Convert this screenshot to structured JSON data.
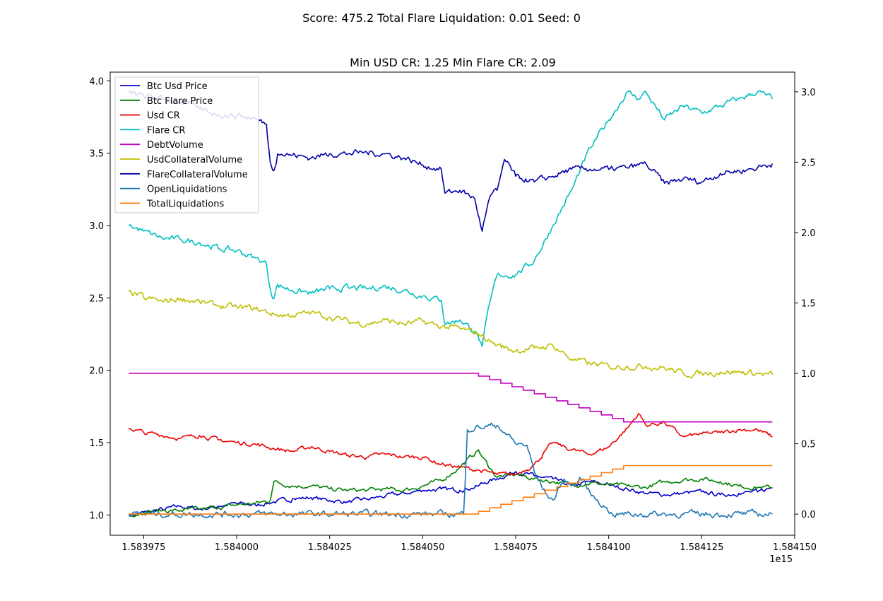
{
  "chart_data": {
    "type": "line",
    "suptitle": "Score: 475.2 Total Flare Liquidation: 0.01 Seed: 0",
    "title": "Min USD CR: 1.25 Min Flare CR: 2.09",
    "x_offset_label": "1e15",
    "xlim": [
      1.583966,
      1.58415
    ],
    "xticks": [
      1.583975,
      1.584,
      1.584025,
      1.58405,
      1.584075,
      1.5841,
      1.584125,
      1.58415
    ],
    "xtick_labels": [
      "1.583975",
      "1.584000",
      "1.584025",
      "1.584050",
      "1.584075",
      "1.584100",
      "1.584125",
      "1.584150"
    ],
    "y_left": {
      "lim": [
        0.86,
        4.06
      ],
      "ticks": [
        1.0,
        1.5,
        2.0,
        2.5,
        3.0,
        3.5,
        4.0
      ],
      "tick_labels": [
        "1.0",
        "1.5",
        "2.0",
        "2.5",
        "3.0",
        "3.5",
        "4.0"
      ]
    },
    "y_right": {
      "lim": [
        -0.15,
        3.14
      ],
      "ticks": [
        0.0,
        0.5,
        1.0,
        1.5,
        2.0,
        2.5,
        3.0
      ],
      "tick_labels": [
        "0.0",
        "0.5",
        "1.0",
        "1.5",
        "2.0",
        "2.5",
        "3.0"
      ]
    },
    "legend_position": "top-left",
    "series": [
      {
        "name": "Btc Usd Price",
        "color": "#0000cc",
        "axis": "left",
        "x": [
          1.583971,
          1.583976,
          1.58398,
          1.583985,
          1.58399,
          1.583995,
          1.584,
          1.584005,
          1.58401,
          1.584015,
          1.58402,
          1.584025,
          1.58403,
          1.584035,
          1.58404,
          1.584045,
          1.58405,
          1.584055,
          1.58406,
          1.584065,
          1.584066,
          1.58407,
          1.584075,
          1.58408,
          1.584085,
          1.58409,
          1.584095,
          1.5841,
          1.584105,
          1.58411,
          1.584115,
          1.58412,
          1.584125,
          1.58413,
          1.584135,
          1.58414,
          1.584144
        ],
        "y": [
          1.0,
          1.02,
          1.04,
          1.06,
          1.04,
          1.06,
          1.08,
          1.07,
          1.09,
          1.11,
          1.12,
          1.1,
          1.09,
          1.11,
          1.13,
          1.15,
          1.17,
          1.18,
          1.17,
          1.2,
          1.22,
          1.25,
          1.3,
          1.27,
          1.25,
          1.2,
          1.23,
          1.21,
          1.18,
          1.15,
          1.14,
          1.15,
          1.16,
          1.14,
          1.15,
          1.16,
          1.19
        ]
      },
      {
        "name": "Btc Flare Price",
        "color": "#008000",
        "axis": "left",
        "x": [
          1.583971,
          1.583975,
          1.58398,
          1.583985,
          1.58399,
          1.583995,
          1.584,
          1.584005,
          1.584009,
          1.58401,
          1.584015,
          1.58402,
          1.584025,
          1.58403,
          1.584035,
          1.58404,
          1.584045,
          1.58405,
          1.584055,
          1.58406,
          1.584065,
          1.584066,
          1.58407,
          1.584075,
          1.58408,
          1.584085,
          1.58409,
          1.584095,
          1.5841,
          1.584105,
          1.58411,
          1.584115,
          1.58412,
          1.584125,
          1.58413,
          1.584135,
          1.58414,
          1.584144
        ],
        "y": [
          1.0,
          1.02,
          1.03,
          1.03,
          1.04,
          1.05,
          1.07,
          1.08,
          1.1,
          1.23,
          1.2,
          1.2,
          1.18,
          1.17,
          1.17,
          1.18,
          1.17,
          1.2,
          1.24,
          1.33,
          1.45,
          1.4,
          1.26,
          1.28,
          1.25,
          1.23,
          1.21,
          1.22,
          1.21,
          1.2,
          1.19,
          1.23,
          1.24,
          1.25,
          1.23,
          1.2,
          1.19,
          1.19
        ]
      },
      {
        "name": "Usd CR",
        "color": "#ee0000",
        "axis": "left",
        "x": [
          1.583971,
          1.583975,
          1.58398,
          1.583985,
          1.58399,
          1.583995,
          1.584,
          1.584005,
          1.58401,
          1.584015,
          1.58402,
          1.584025,
          1.58403,
          1.584035,
          1.58404,
          1.584045,
          1.58405,
          1.584055,
          1.58406,
          1.584065,
          1.58407,
          1.584075,
          1.58408,
          1.584085,
          1.58409,
          1.584095,
          1.5841,
          1.584105,
          1.584108,
          1.58411,
          1.584115,
          1.58412,
          1.584125,
          1.58413,
          1.584135,
          1.58414,
          1.584144
        ],
        "y": [
          1.6,
          1.57,
          1.55,
          1.53,
          1.55,
          1.52,
          1.5,
          1.49,
          1.46,
          1.44,
          1.47,
          1.44,
          1.41,
          1.4,
          1.42,
          1.4,
          1.4,
          1.35,
          1.33,
          1.31,
          1.28,
          1.28,
          1.35,
          1.5,
          1.45,
          1.42,
          1.47,
          1.6,
          1.7,
          1.62,
          1.64,
          1.54,
          1.56,
          1.57,
          1.59,
          1.59,
          1.54
        ]
      },
      {
        "name": "Flare CR",
        "color": "#00bfbf",
        "axis": "right",
        "x": [
          1.583971,
          1.583975,
          1.58398,
          1.583985,
          1.58399,
          1.583995,
          1.584,
          1.584005,
          1.584008,
          1.584009,
          1.58401,
          1.584011,
          1.584015,
          1.58402,
          1.584025,
          1.58403,
          1.584035,
          1.58404,
          1.584045,
          1.58405,
          1.584055,
          1.584056,
          1.58406,
          1.584064,
          1.584066,
          1.584068,
          1.58407,
          1.584075,
          1.58408,
          1.584085,
          1.58409,
          1.584095,
          1.5841,
          1.584105,
          1.584108,
          1.58411,
          1.584115,
          1.58412,
          1.584125,
          1.58413,
          1.584135,
          1.58414,
          1.584144
        ],
        "y": [
          2.05,
          2.01,
          1.96,
          1.95,
          1.93,
          1.89,
          1.87,
          1.82,
          1.78,
          1.6,
          1.53,
          1.63,
          1.59,
          1.57,
          1.6,
          1.61,
          1.6,
          1.62,
          1.59,
          1.55,
          1.52,
          1.35,
          1.38,
          1.3,
          1.19,
          1.5,
          1.7,
          1.7,
          1.8,
          2.05,
          2.3,
          2.6,
          2.8,
          3.0,
          2.95,
          3.0,
          2.8,
          2.9,
          2.85,
          2.9,
          2.95,
          3.0,
          2.95
        ]
      },
      {
        "name": "DebtVolume",
        "color": "#bf00bf",
        "axis": "right",
        "x": [
          1.583971,
          1.584062,
          1.584065,
          1.584068,
          1.584071,
          1.584074,
          1.584077,
          1.58408,
          1.584083,
          1.584086,
          1.584089,
          1.584092,
          1.584095,
          1.584098,
          1.584101,
          1.584104,
          1.584144
        ],
        "y": [
          1.0,
          1.0,
          0.98,
          0.955,
          0.93,
          0.905,
          0.88,
          0.855,
          0.83,
          0.805,
          0.78,
          0.755,
          0.73,
          0.705,
          0.68,
          0.655,
          0.655
        ]
      },
      {
        "name": "UsdCollateralVolume",
        "color": "#bfbf00",
        "axis": "right",
        "x": [
          1.583971,
          1.583975,
          1.58398,
          1.583985,
          1.58399,
          1.583995,
          1.584,
          1.584005,
          1.58401,
          1.584015,
          1.58402,
          1.584025,
          1.58403,
          1.584035,
          1.58404,
          1.584045,
          1.58405,
          1.584055,
          1.58406,
          1.584065,
          1.58407,
          1.584075,
          1.58408,
          1.584085,
          1.58409,
          1.584095,
          1.5841,
          1.584105,
          1.58411,
          1.584115,
          1.58412,
          1.584125,
          1.58413,
          1.584135,
          1.58414,
          1.584144
        ],
        "y": [
          1.58,
          1.54,
          1.51,
          1.53,
          1.51,
          1.48,
          1.47,
          1.46,
          1.42,
          1.41,
          1.43,
          1.4,
          1.37,
          1.35,
          1.38,
          1.35,
          1.37,
          1.33,
          1.32,
          1.28,
          1.2,
          1.16,
          1.18,
          1.2,
          1.1,
          1.07,
          1.05,
          1.05,
          1.05,
          1.04,
          1.0,
          1.0,
          1.01,
          1.01,
          1.0,
          0.99
        ]
      },
      {
        "name": "FlareCollateralVolume",
        "color": "#0000aa",
        "axis": "right",
        "x": [
          1.583971,
          1.583975,
          1.58398,
          1.583985,
          1.58399,
          1.583995,
          1.584,
          1.584005,
          1.584008,
          1.584009,
          1.58401,
          1.584011,
          1.584015,
          1.58402,
          1.584025,
          1.58403,
          1.584035,
          1.58404,
          1.584045,
          1.58405,
          1.584055,
          1.584056,
          1.58406,
          1.584064,
          1.584066,
          1.584068,
          1.58407,
          1.584072,
          1.584075,
          1.58408,
          1.584085,
          1.58409,
          1.584095,
          1.5841,
          1.584105,
          1.58411,
          1.584115,
          1.58412,
          1.584125,
          1.58413,
          1.584135,
          1.58414,
          1.584144
        ],
        "y": [
          3.0,
          2.97,
          2.95,
          2.93,
          2.88,
          2.84,
          2.83,
          2.81,
          2.77,
          2.5,
          2.44,
          2.56,
          2.55,
          2.53,
          2.56,
          2.56,
          2.57,
          2.56,
          2.53,
          2.48,
          2.45,
          2.28,
          2.3,
          2.24,
          2.01,
          2.25,
          2.3,
          2.52,
          2.4,
          2.36,
          2.4,
          2.45,
          2.45,
          2.45,
          2.46,
          2.49,
          2.35,
          2.38,
          2.36,
          2.42,
          2.44,
          2.46,
          2.49
        ]
      },
      {
        "name": "OpenLiquidations",
        "color": "#1f77b4",
        "axis": "right",
        "x": [
          1.583971,
          1.584061,
          1.584062,
          1.584065,
          1.58407,
          1.584072,
          1.584075,
          1.584078,
          1.58408,
          1.584083,
          1.584085,
          1.584088,
          1.58409,
          1.584093,
          1.584095,
          1.584097,
          1.584099,
          1.584101,
          1.584144
        ],
        "y": [
          0.0,
          0.0,
          0.6,
          0.62,
          0.63,
          0.58,
          0.5,
          0.49,
          0.3,
          0.15,
          0.1,
          0.25,
          0.2,
          0.25,
          0.15,
          0.1,
          0.05,
          0.0,
          0.0
        ]
      },
      {
        "name": "TotalLiquidations",
        "color": "#ff7f0e",
        "axis": "right",
        "x": [
          1.583971,
          1.584062,
          1.584065,
          1.584068,
          1.584071,
          1.584074,
          1.584077,
          1.58408,
          1.584083,
          1.584086,
          1.584089,
          1.584092,
          1.584095,
          1.584098,
          1.584101,
          1.584104,
          1.584144
        ],
        "y": [
          0.0,
          0.0,
          0.02,
          0.045,
          0.07,
          0.095,
          0.12,
          0.145,
          0.17,
          0.195,
          0.22,
          0.245,
          0.27,
          0.295,
          0.32,
          0.345,
          0.345
        ]
      }
    ]
  }
}
